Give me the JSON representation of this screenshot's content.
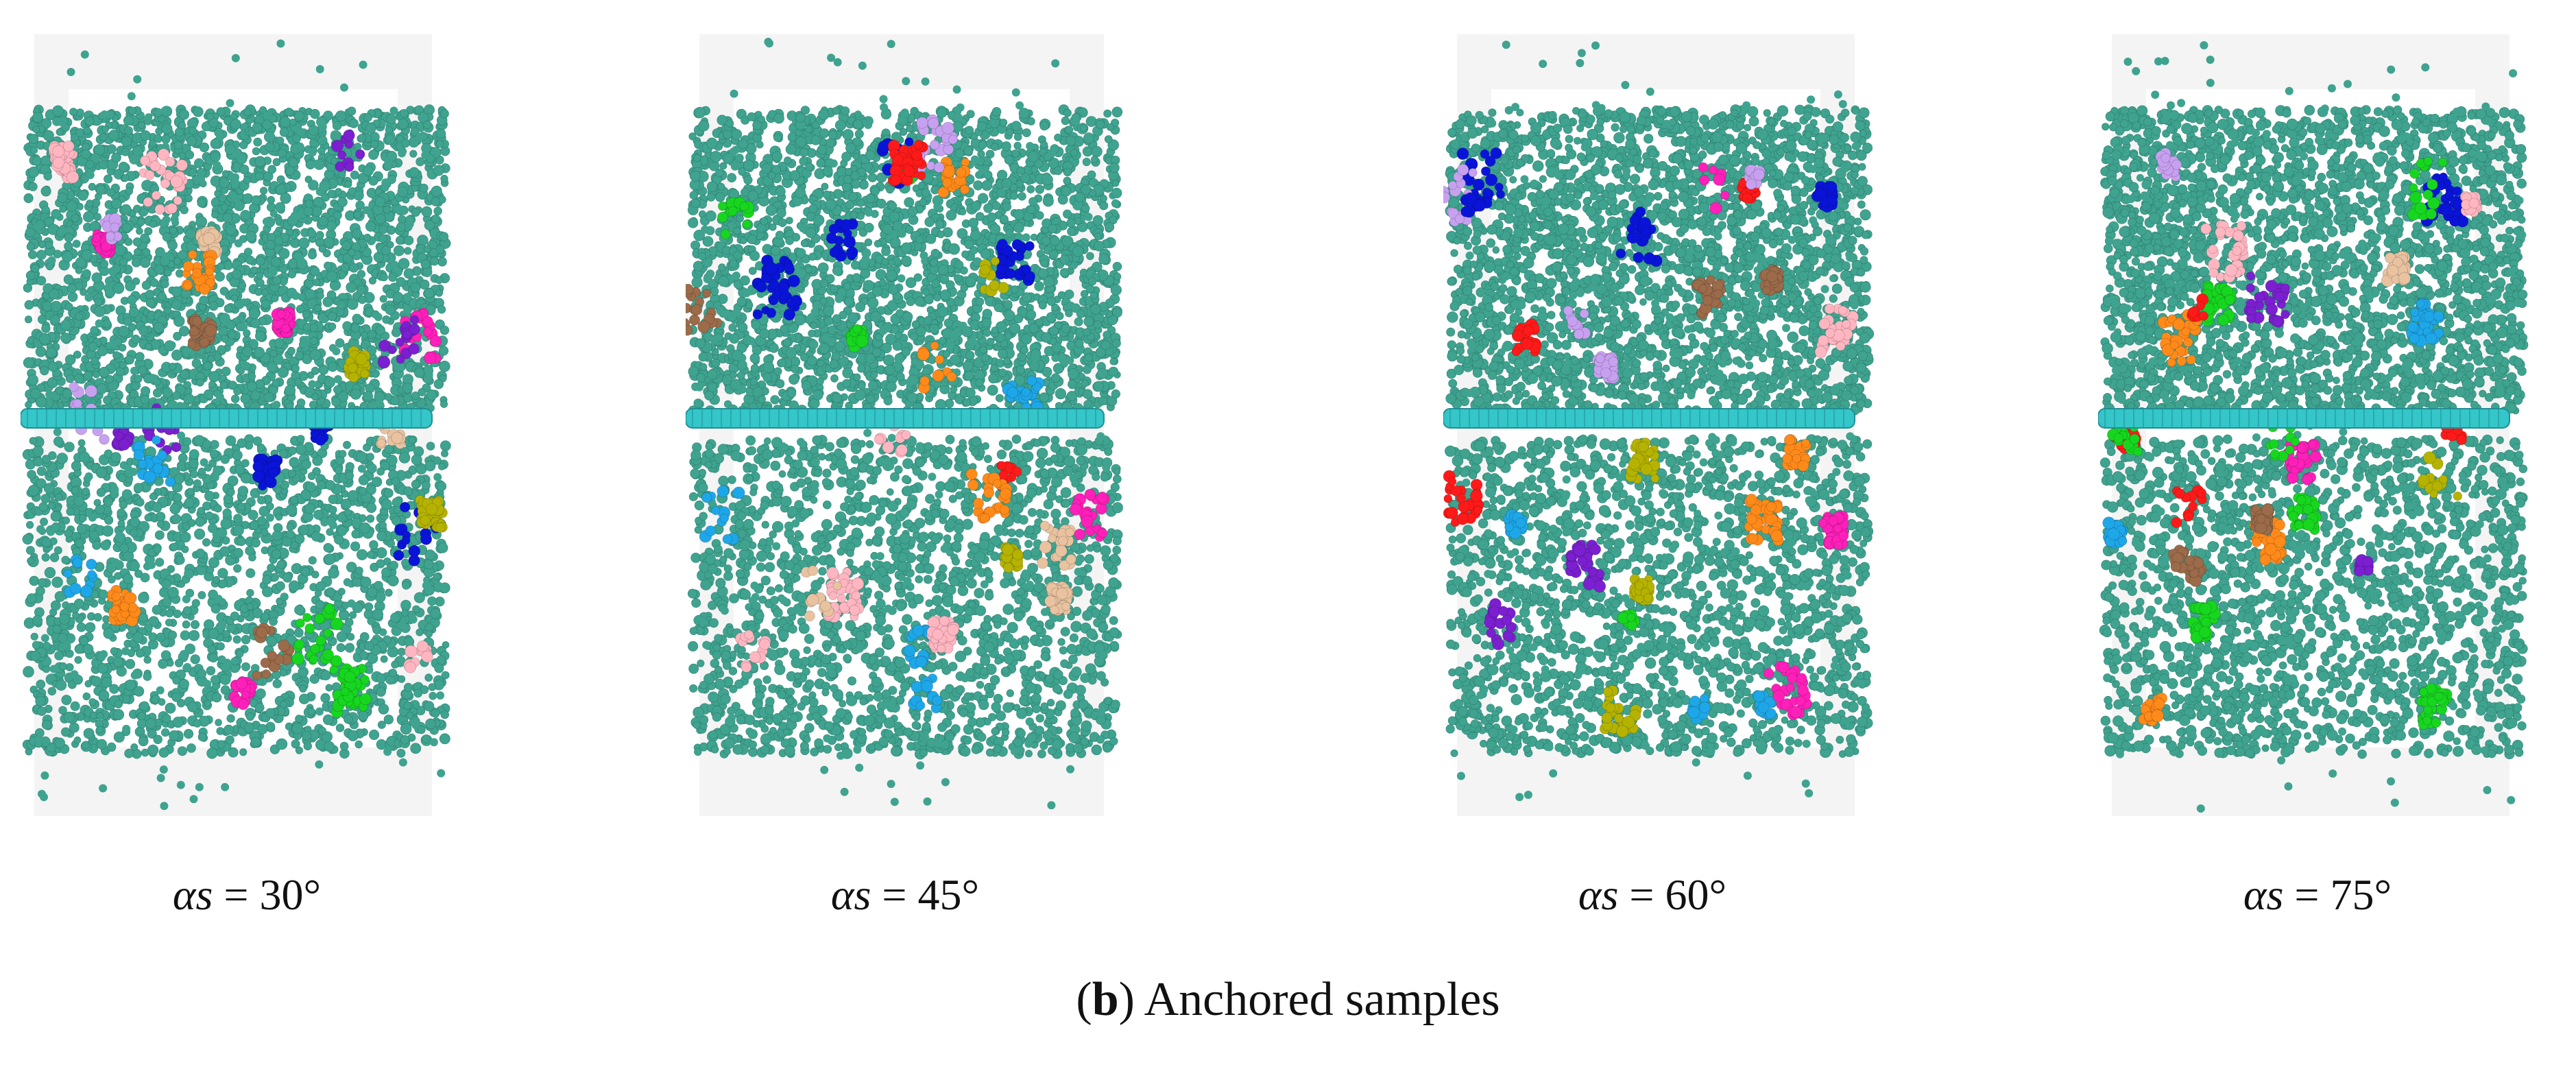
{
  "panels": [
    {
      "label_prefix": "αs",
      "label_value": "= 30°",
      "seed": 11
    },
    {
      "label_prefix": "αs",
      "label_value": "= 45°",
      "seed": 23
    },
    {
      "label_prefix": "αs",
      "label_value": "= 60°",
      "seed": 37
    },
    {
      "label_prefix": "αs",
      "label_value": "= 75°",
      "seed": 51
    }
  ],
  "caption": {
    "open": "(",
    "letter": "b",
    "close": ")",
    "text": " Anchored samples"
  },
  "colors": {
    "matrix": "#3fa38f",
    "anchor": "#34c6c8",
    "clusters": [
      "#7b1fd0",
      "#ff1fb9",
      "#0a14d8",
      "#ff1a1a",
      "#ff8a1a",
      "#17d61f",
      "#ffb6c1",
      "#c7a0f0",
      "#b5b300",
      "#1ea7e8",
      "#e9c2a0",
      "#9b6b4a"
    ]
  }
}
